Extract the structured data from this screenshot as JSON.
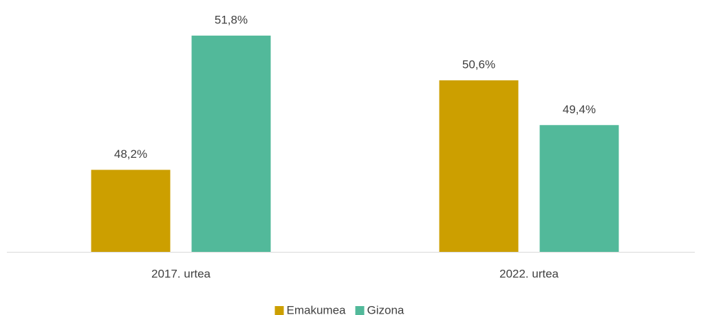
{
  "chart_data": {
    "type": "bar",
    "categories": [
      "2017. urtea",
      "2022. urtea"
    ],
    "series": [
      {
        "name": "Emakumea",
        "color": "#cc9f00",
        "values": [
          48.2,
          50.6
        ],
        "value_labels": [
          "48,2%",
          "50,6%"
        ]
      },
      {
        "name": "Gizona",
        "color": "#52b99a",
        "values": [
          51.8,
          49.4
        ],
        "value_labels": [
          "51,8%",
          "49,4%"
        ]
      }
    ],
    "ylim": [
      46,
      52
    ],
    "legend": "bottom"
  }
}
